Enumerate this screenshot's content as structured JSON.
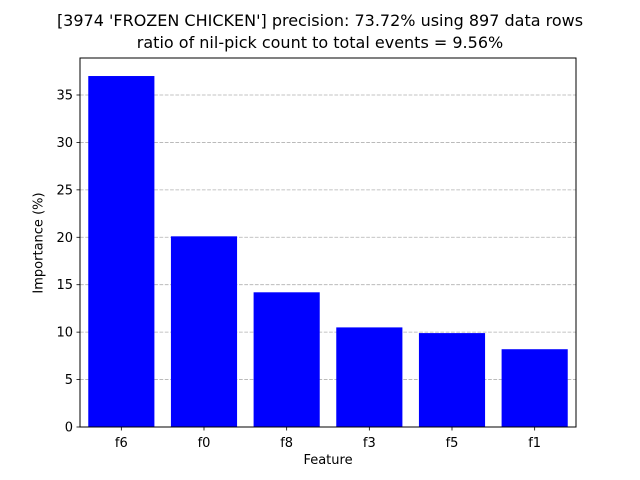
{
  "chart_data": {
    "type": "bar",
    "title": "[3974 'FROZEN CHICKEN'] precision: 73.72% using 897 data rows",
    "subtitle": "ratio of nil-pick count to total events = 9.56%",
    "xlabel": "Feature",
    "ylabel": "Importance (%)",
    "categories": [
      "f6",
      "f0",
      "f8",
      "f3",
      "f5",
      "f1"
    ],
    "values": [
      37.0,
      20.1,
      14.2,
      10.5,
      9.9,
      8.2
    ],
    "ylim": [
      0,
      38.9
    ],
    "yticks": [
      0,
      5,
      10,
      15,
      20,
      25,
      30,
      35
    ],
    "grid": "y-dashed",
    "bar_color": "#0000ff"
  }
}
